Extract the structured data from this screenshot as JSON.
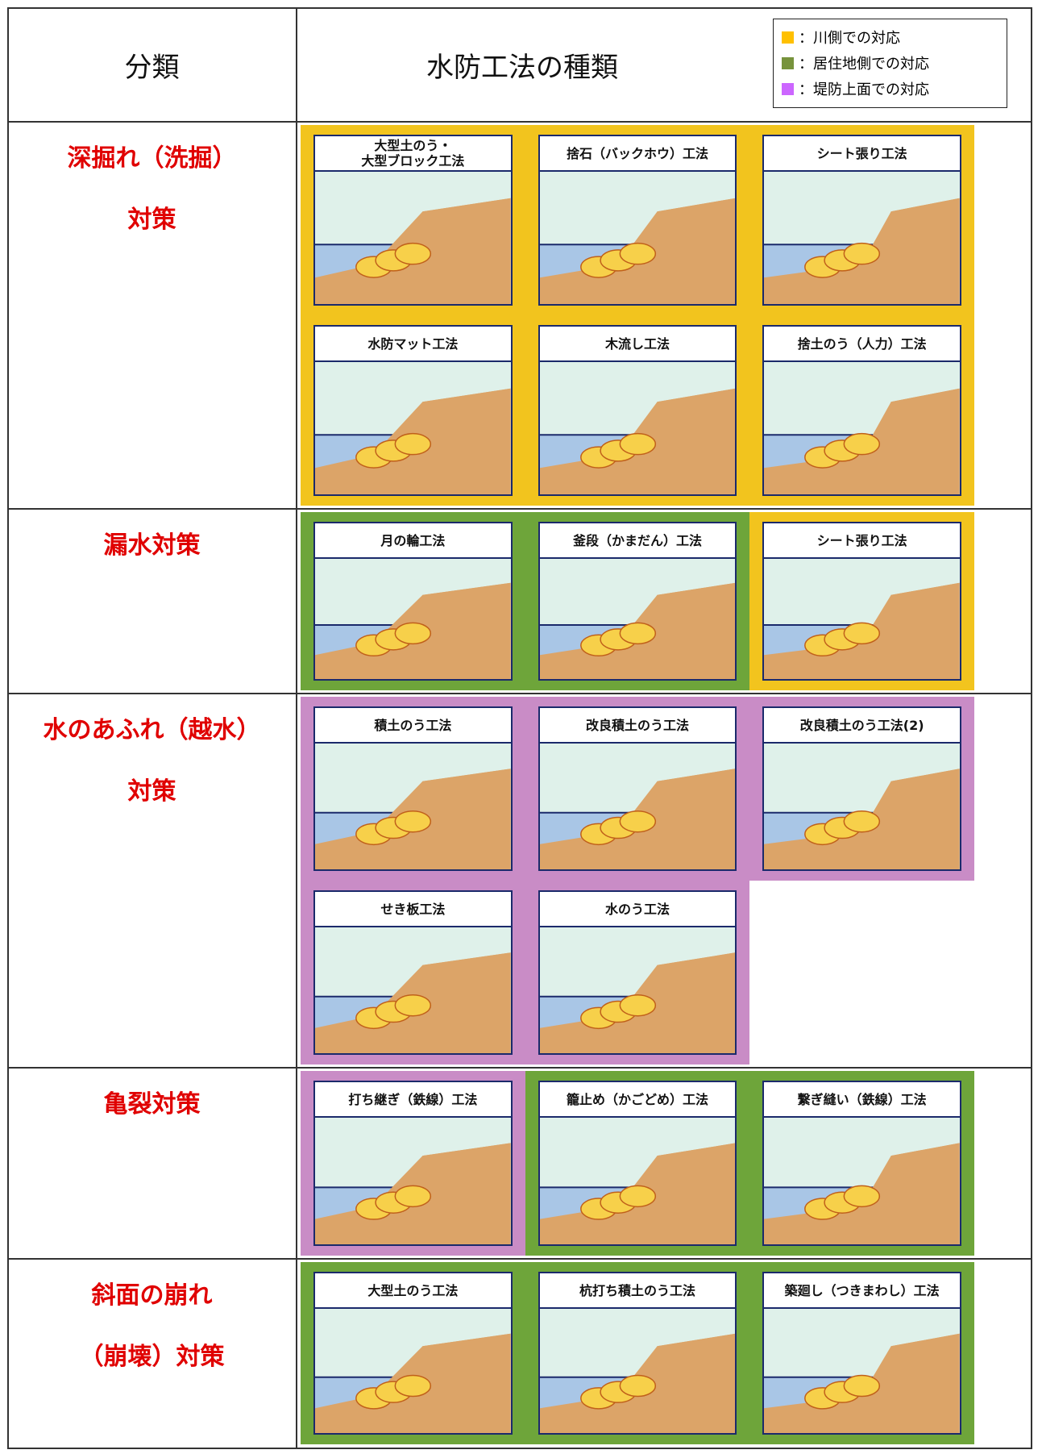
{
  "header": {
    "col1": "分類",
    "col2": "水防工法の種類",
    "legend": [
      {
        "label": "：川側での対応",
        "color": "#ffc000"
      },
      {
        "label": "：居住地側での対応",
        "color": "#77933c"
      },
      {
        "label": "：堤防上面での対応",
        "color": "#cc66ff"
      }
    ]
  },
  "rows": [
    {
      "category": [
        "深掘れ（洗掘）",
        "対策"
      ],
      "methods": [
        {
          "title": [
            "大型土のう・",
            "大型ブロック工法"
          ],
          "color": "#f2c41e"
        },
        {
          "title": [
            "捨石（バックホウ）工法"
          ],
          "color": "#f2c41e"
        },
        {
          "title": [
            "シート張り工法"
          ],
          "color": "#f2c41e"
        },
        {
          "title": [
            "水防マット工法"
          ],
          "color": "#f2c41e"
        },
        {
          "title": [
            "木流し工法"
          ],
          "color": "#f2c41e"
        },
        {
          "title": [
            "捨土のう（人力）工法"
          ],
          "color": "#f2c41e"
        }
      ]
    },
    {
      "category": [
        "漏水対策"
      ],
      "methods": [
        {
          "title": [
            "月の輪工法"
          ],
          "color": "#6ea53a"
        },
        {
          "title": [
            "釜段（かまだん）工法"
          ],
          "color": "#6ea53a"
        },
        {
          "title": [
            "シート張り工法"
          ],
          "color": "#f2c41e"
        }
      ]
    },
    {
      "category": [
        "水のあふれ（越水）",
        "対策"
      ],
      "methods": [
        {
          "title": [
            "積土のう工法"
          ],
          "color": "#c98cc6"
        },
        {
          "title": [
            "改良積土のう工法"
          ],
          "color": "#c98cc6"
        },
        {
          "title": [
            "改良積土のう工法(2)"
          ],
          "color": "#c98cc6"
        },
        {
          "title": [
            "せき板工法"
          ],
          "color": "#c98cc6"
        },
        {
          "title": [
            "水のう工法"
          ],
          "color": "#c98cc6"
        }
      ]
    },
    {
      "category": [
        "亀裂対策"
      ],
      "methods": [
        {
          "title": [
            "打ち継ぎ（鉄線）工法"
          ],
          "color": "#c98cc6"
        },
        {
          "title": [
            "籠止め（かごどめ）工法"
          ],
          "color": "#6ea53a"
        },
        {
          "title": [
            "繋ぎ縫い（鉄線）工法"
          ],
          "color": "#6ea53a"
        }
      ]
    },
    {
      "category": [
        "斜面の崩れ",
        "（崩壊）対策"
      ],
      "methods": [
        {
          "title": [
            "大型土のう工法"
          ],
          "color": "#6ea53a"
        },
        {
          "title": [
            "杭打ち積土のう工法"
          ],
          "color": "#6ea53a"
        },
        {
          "title": [
            "築廻し（つきまわし）工法"
          ],
          "color": "#6ea53a"
        }
      ]
    }
  ]
}
